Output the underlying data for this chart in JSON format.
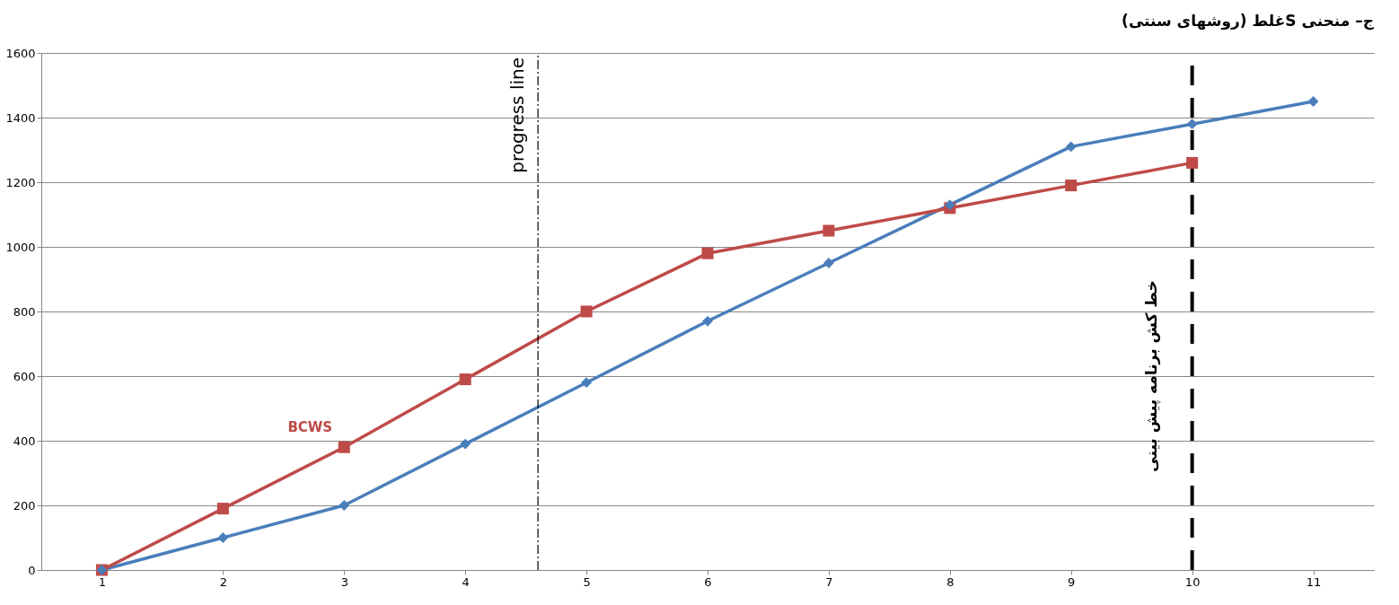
{
  "chart_data": {
    "type": "line",
    "title": "ج– منحنی Sغلط (روشهای سنتی)",
    "x": [
      1,
      2,
      3,
      4,
      5,
      6,
      7,
      8,
      9,
      10,
      11
    ],
    "xlim": [
      0.5,
      11.5
    ],
    "xticks": [
      1,
      2,
      3,
      4,
      5,
      6,
      7,
      8,
      9,
      10,
      11
    ],
    "ylim": [
      0,
      1600
    ],
    "yticks": [
      0,
      200,
      400,
      600,
      800,
      1000,
      1200,
      1400,
      1600
    ],
    "grid": "y",
    "line_style": "solid",
    "series": [
      {
        "color": "#4a7ebb",
        "marker": "diamond",
        "values": [
          0,
          100,
          200,
          390,
          580,
          770,
          950,
          1130,
          1310,
          1380,
          1450
        ]
      },
      {
        "name": "BCWS",
        "color": "#be4b48",
        "marker": "square",
        "values": [
          0,
          190,
          380,
          590,
          800,
          980,
          1050,
          1120,
          1190,
          1260,
          null
        ]
      }
    ],
    "ref_lines": [
      {
        "axis": "x",
        "value": 4.6,
        "label": "progress line",
        "color": "#000000",
        "line_style": "dashed"
      },
      {
        "axis": "x",
        "value": 10,
        "label": "خط کش برنامه پیش بینی",
        "color": "#000000",
        "line_style": "dashed"
      }
    ]
  }
}
